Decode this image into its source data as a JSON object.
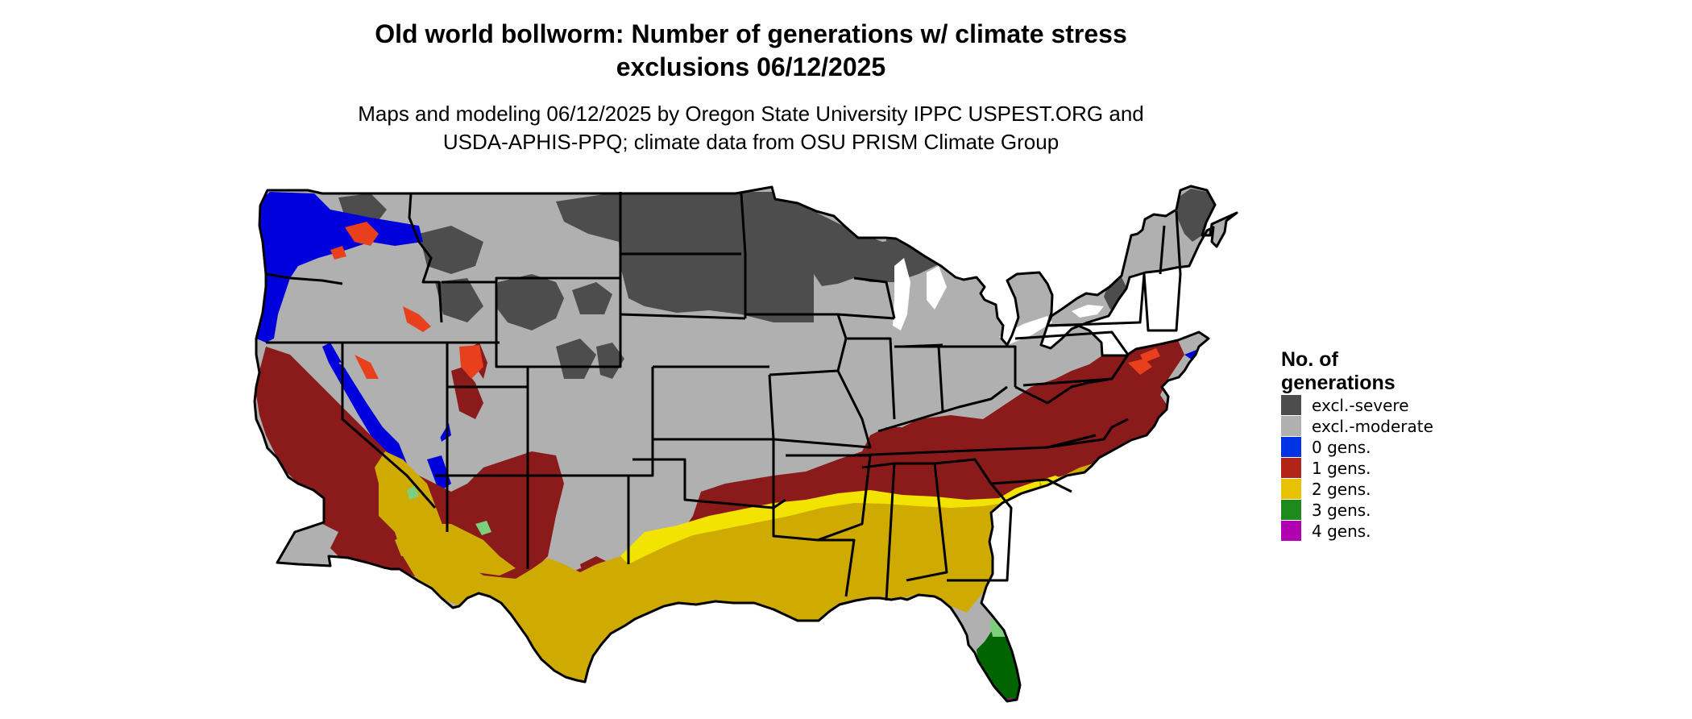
{
  "title": {
    "line1": "Old world bollworm: Number of generations w/ climate stress",
    "line2": "exclusions 06/12/2025"
  },
  "subtitle": {
    "line1": "Maps and modeling 06/12/2025 by Oregon State University IPPC USPEST.ORG and",
    "line2": "USDA-APHIS-PPQ; climate data from OSU PRISM Climate Group"
  },
  "legend": {
    "title_line1": "No. of",
    "title_line2": "generations",
    "items": [
      {
        "label": "excl.-severe",
        "color": "#4d4d4d"
      },
      {
        "label": "excl.-moderate",
        "color": "#b0b0b0"
      },
      {
        "label": "0 gens.",
        "color": "#0033e6"
      },
      {
        "label": "1 gens.",
        "color": "#b22418"
      },
      {
        "label": "2 gens.",
        "color": "#e6c200"
      },
      {
        "label": "3 gens.",
        "color": "#1e8a1e"
      },
      {
        "label": "4 gens.",
        "color": "#b000b0"
      }
    ]
  },
  "map_colors": {
    "excl_severe": "#4d4d4d",
    "excl_moderate": "#b0b0b0",
    "gens_0": "#0000dd",
    "gens_1": "#8b1a1a",
    "gens_2": "#cfaa00",
    "gens_3": "#006400",
    "gens_3_light": "#7ccf7c",
    "gens_4": "#b000b0",
    "red_patch": "#e8401c",
    "yellow_bright": "#f2e400",
    "border": "#000000",
    "water": "#ffffff"
  }
}
